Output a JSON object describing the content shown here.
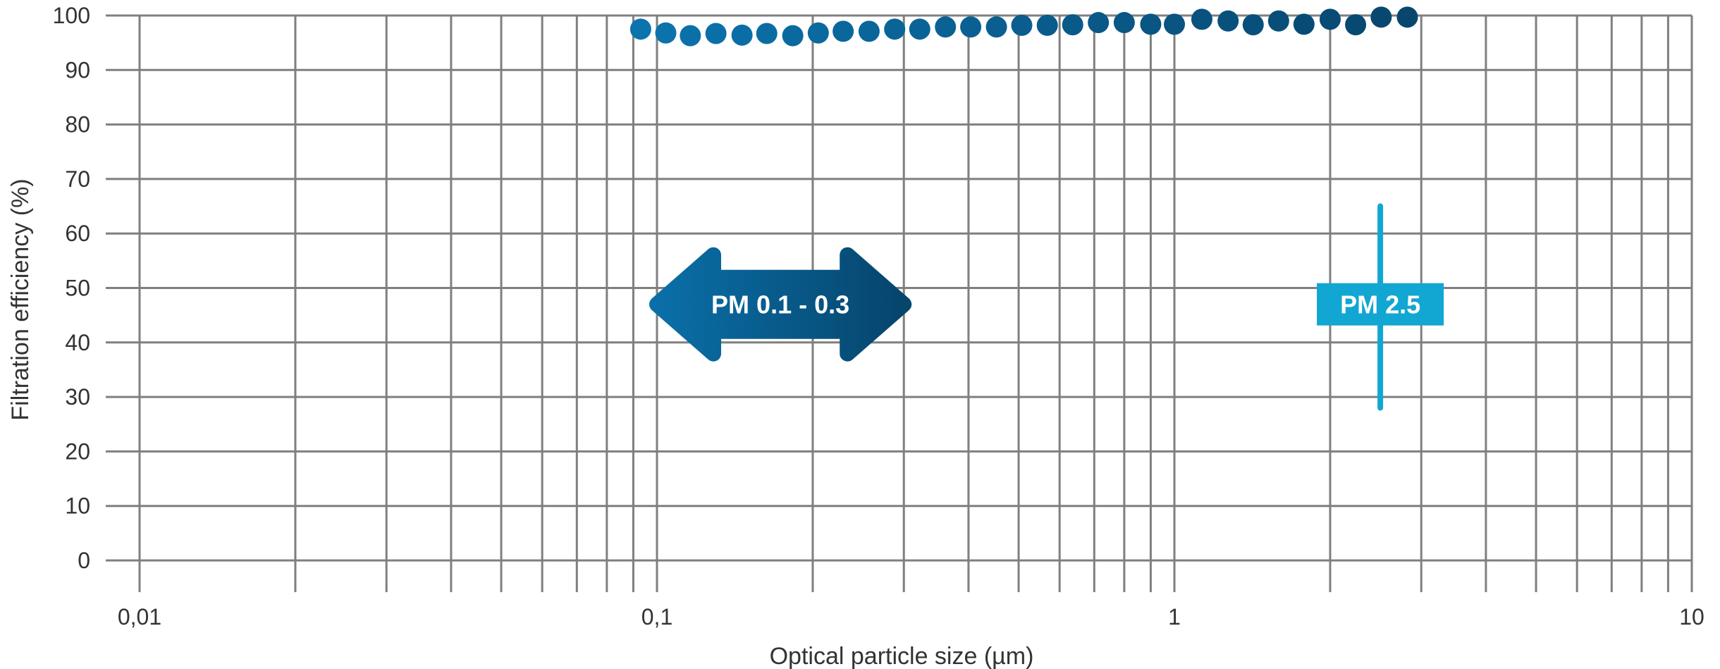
{
  "chart_data": {
    "type": "scatter",
    "xlabel": "Optical particle size (µm)",
    "ylabel": "Filtration efficiency (%)",
    "x_scale": "log",
    "xlim": [
      0.01,
      10
    ],
    "ylim": [
      0,
      100
    ],
    "grid": true,
    "x_tick_labels": [
      {
        "value": 0.01,
        "label": "0,01"
      },
      {
        "value": 0.1,
        "label": "0,1"
      },
      {
        "value": 1,
        "label": "1"
      },
      {
        "value": 10,
        "label": "10"
      }
    ],
    "y_tick_labels": [
      {
        "value": 0,
        "label": "0"
      },
      {
        "value": 10,
        "label": "10"
      },
      {
        "value": 20,
        "label": "20"
      },
      {
        "value": 30,
        "label": "30"
      },
      {
        "value": 40,
        "label": "40"
      },
      {
        "value": 50,
        "label": "50"
      },
      {
        "value": 60,
        "label": "60"
      },
      {
        "value": 70,
        "label": "70"
      },
      {
        "value": 80,
        "label": "80"
      },
      {
        "value": 90,
        "label": "90"
      },
      {
        "value": 100,
        "label": "100"
      }
    ],
    "points": [
      {
        "x": 0.093,
        "y": 97.5
      },
      {
        "x": 0.104,
        "y": 96.8
      },
      {
        "x": 0.116,
        "y": 96.3
      },
      {
        "x": 0.13,
        "y": 96.7
      },
      {
        "x": 0.146,
        "y": 96.4
      },
      {
        "x": 0.163,
        "y": 96.7
      },
      {
        "x": 0.183,
        "y": 96.3
      },
      {
        "x": 0.205,
        "y": 96.8
      },
      {
        "x": 0.229,
        "y": 97.1
      },
      {
        "x": 0.257,
        "y": 97.1
      },
      {
        "x": 0.288,
        "y": 97.5
      },
      {
        "x": 0.322,
        "y": 97.5
      },
      {
        "x": 0.361,
        "y": 97.9
      },
      {
        "x": 0.404,
        "y": 97.9
      },
      {
        "x": 0.453,
        "y": 97.9
      },
      {
        "x": 0.507,
        "y": 98.2
      },
      {
        "x": 0.568,
        "y": 98.2
      },
      {
        "x": 0.636,
        "y": 98.3
      },
      {
        "x": 0.713,
        "y": 98.7
      },
      {
        "x": 0.8,
        "y": 98.7
      },
      {
        "x": 0.9,
        "y": 98.4
      },
      {
        "x": 1.0,
        "y": 98.4
      },
      {
        "x": 1.13,
        "y": 99.3
      },
      {
        "x": 1.27,
        "y": 99.0
      },
      {
        "x": 1.42,
        "y": 98.3
      },
      {
        "x": 1.59,
        "y": 99.0
      },
      {
        "x": 1.78,
        "y": 98.4
      },
      {
        "x": 2.0,
        "y": 99.3
      },
      {
        "x": 2.24,
        "y": 98.3
      },
      {
        "x": 2.51,
        "y": 99.7
      },
      {
        "x": 2.82,
        "y": 99.7
      }
    ],
    "annotations": [
      {
        "label": "PM 0.1 - 0.3",
        "kind": "double-arrow",
        "x_range": [
          0.1,
          0.3
        ],
        "y": 47
      },
      {
        "label": "PM 2.5",
        "kind": "marker-line",
        "x": 2.5,
        "y": 47,
        "y_range": [
          28,
          65
        ]
      }
    ]
  },
  "colors": {
    "grid": "#7f7f7f",
    "point_start": "#0b73ad",
    "point_end": "#08466e",
    "arrow_start": "#0a6fa8",
    "arrow_end": "#06456c",
    "pm25": "#12a6d2"
  }
}
